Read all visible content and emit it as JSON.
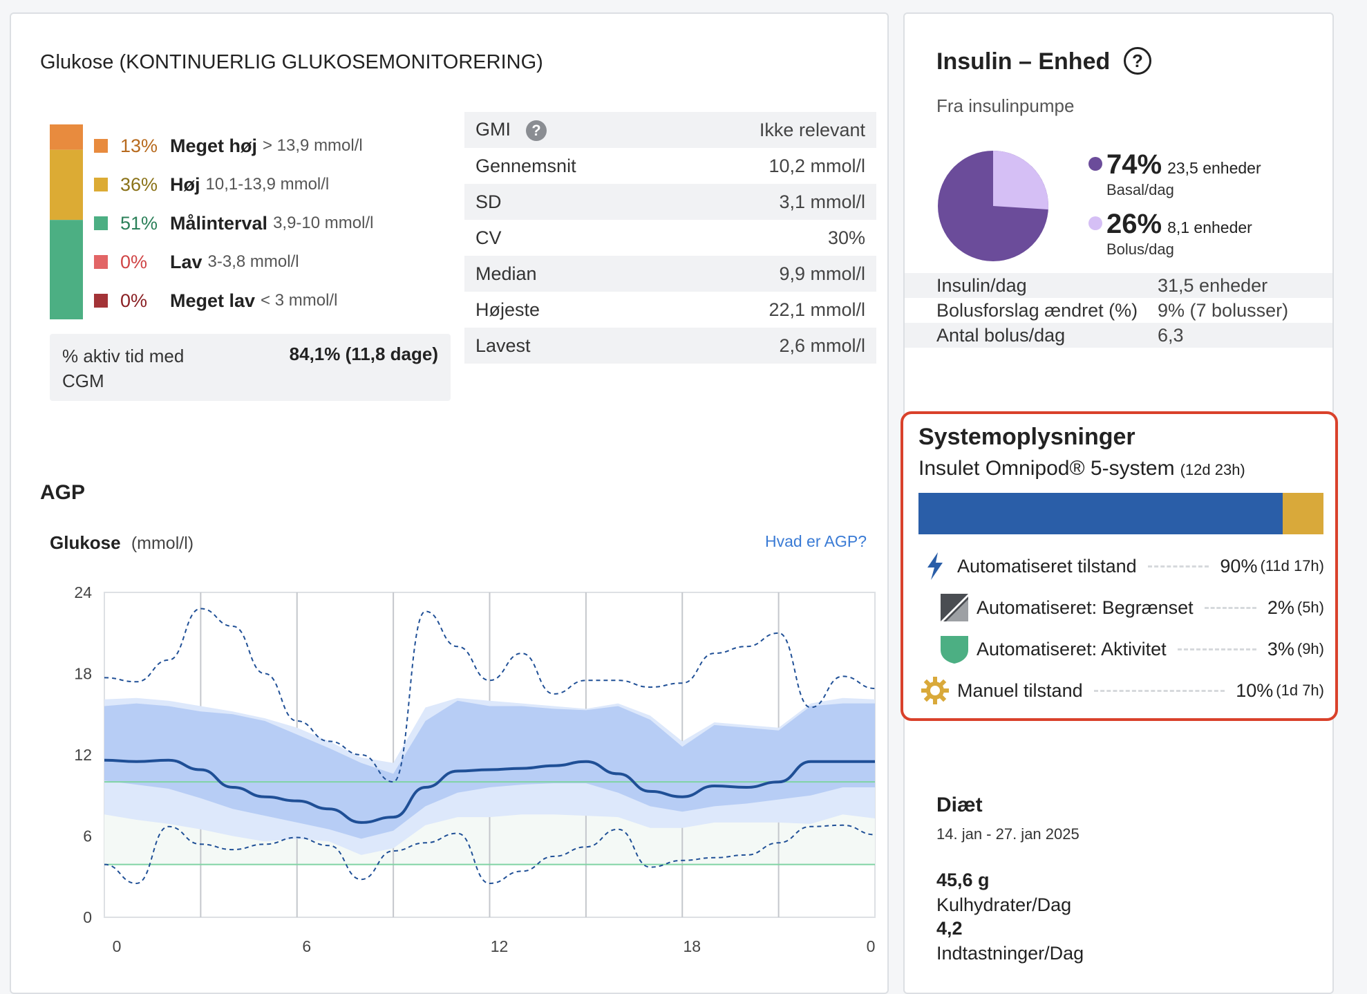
{
  "glucose": {
    "title": "Glukose (KONTINUERLIG GLUKOSEMONITORERING)",
    "tir": [
      {
        "pct": "13%",
        "name": "Meget høj",
        "range": "> 13,9 mmol/l",
        "color": "#e88b3e",
        "text_color": "#b76a1e",
        "value": 13
      },
      {
        "pct": "36%",
        "name": "Høj",
        "range": "10,1-13,9 mmol/l",
        "color": "#dcab34",
        "text_color": "#8a7218",
        "value": 36
      },
      {
        "pct": "51%",
        "name": "Målinterval",
        "range": "3,9-10 mmol/l",
        "color": "#4caf83",
        "text_color": "#2b8059",
        "value": 51
      },
      {
        "pct": "0%",
        "name": "Lav",
        "range": "3-3,8 mmol/l",
        "color": "#e26566",
        "text_color": "#d04546",
        "value": 0
      },
      {
        "pct": "0%",
        "name": "Meget lav",
        "range": "< 3 mmol/l",
        "color": "#a33337",
        "text_color": "#8a2024",
        "value": 0
      }
    ],
    "active_label": "% aktiv tid med CGM",
    "active_value": "84,1% (11,8 dage)",
    "stats": [
      {
        "label": "GMI",
        "value": "Ikke relevant",
        "help": "?"
      },
      {
        "label": "Gennemsnit",
        "value": "10,2 mmol/l"
      },
      {
        "label": "SD",
        "value": "3,1 mmol/l"
      },
      {
        "label": "CV",
        "value": "30%"
      },
      {
        "label": "Median",
        "value": "9,9 mmol/l"
      },
      {
        "label": "Højeste",
        "value": "22,1 mmol/l"
      },
      {
        "label": "Lavest",
        "value": "2,6 mmol/l"
      }
    ]
  },
  "agp": {
    "title": "AGP",
    "subtitle": "Glukose",
    "unit": "(mmol/l)",
    "link": "Hvad er AGP?"
  },
  "chart_data": {
    "type": "line",
    "xlabel": "",
    "ylabel": "Glukose (mmol/l)",
    "xlim": [
      0,
      24
    ],
    "ylim": [
      0,
      24
    ],
    "x_ticks": [
      "0",
      "6",
      "12",
      "18",
      "0"
    ],
    "y_ticks": [
      "24",
      "18",
      "12",
      "6",
      "0"
    ],
    "target_range": [
      3.9,
      10
    ],
    "x": [
      0,
      1,
      2,
      3,
      4,
      5,
      6,
      7,
      8,
      9,
      10,
      11,
      12,
      13,
      14,
      15,
      16,
      17,
      18,
      19,
      20,
      21,
      22,
      23,
      24
    ],
    "series": [
      {
        "name": "p95",
        "values": [
          17.7,
          17.4,
          19,
          22.8,
          21.5,
          18,
          14.5,
          13,
          12,
          10,
          22.6,
          20,
          17.5,
          19.5,
          16.5,
          17.5,
          17.5,
          17,
          17.3,
          19.5,
          20,
          21,
          15.5,
          17.8,
          16.9
        ]
      },
      {
        "name": "p75",
        "values": [
          15.6,
          15.8,
          15.6,
          15.2,
          15,
          14.5,
          13.5,
          12.5,
          11.4,
          10.6,
          14.5,
          16,
          15.6,
          15.6,
          15.4,
          15.3,
          15.6,
          14.6,
          12.6,
          14.2,
          14,
          13.8,
          15.6,
          15.8,
          15.8
        ]
      },
      {
        "name": "p50",
        "values": [
          11.6,
          11.5,
          11.6,
          10.9,
          9.6,
          8.9,
          8.6,
          8,
          7,
          7.4,
          9.6,
          10.8,
          10.9,
          11,
          11.2,
          11.5,
          10.6,
          9.3,
          8.9,
          9.7,
          9.6,
          10,
          11.5,
          11.5,
          11.5
        ]
      },
      {
        "name": "p25",
        "values": [
          10.1,
          9.8,
          9.5,
          8.8,
          8,
          7.5,
          7,
          6.5,
          5.8,
          6.4,
          8.2,
          9.2,
          9.6,
          9.8,
          9.9,
          9.9,
          9.2,
          8.2,
          7.8,
          8.2,
          8.4,
          8.7,
          9,
          9.6,
          9.6
        ]
      },
      {
        "name": "p5",
        "values": [
          3.9,
          2.5,
          6.7,
          5.4,
          5,
          5.4,
          5.9,
          5.3,
          2.8,
          4.9,
          5.5,
          6.2,
          2.5,
          3.4,
          4.5,
          5.2,
          6.5,
          3.7,
          4.2,
          4.4,
          4.6,
          5.5,
          6.7,
          6.8,
          6.1
        ]
      },
      {
        "name": "p10",
        "values": [
          7.6,
          7.2,
          6.9,
          6.5,
          6,
          5.6,
          5.8,
          5.6,
          4.6,
          5.1,
          6.8,
          7.4,
          7.4,
          7.6,
          7.6,
          7.5,
          7.4,
          6.6,
          6.6,
          7,
          7,
          7,
          6.9,
          7.6,
          7.3
        ]
      },
      {
        "name": "p90",
        "values": [
          16.1,
          16.2,
          16,
          15.6,
          15.2,
          14.7,
          14,
          13,
          11.8,
          11.4,
          15.5,
          16.2,
          16,
          15.8,
          15.6,
          15.4,
          15.8,
          14.9,
          13,
          14.4,
          14.2,
          14,
          15.8,
          16.2,
          16.1
        ]
      }
    ]
  },
  "insulin": {
    "title": "Insulin – Enhed",
    "help": "?",
    "source": "Fra insulinpumpe",
    "basal": {
      "pct": "74%",
      "units": "23,5 enheder",
      "label": "Basal/dag",
      "color": "#6b4c9a",
      "value": 74
    },
    "bolus": {
      "pct": "26%",
      "units": "8,1 enheder",
      "label": "Bolus/dag",
      "color": "#d5bff5",
      "value": 26
    },
    "rows": [
      {
        "label": "Insulin/dag",
        "value": "31,5 enheder"
      },
      {
        "label": "Bolusforslag ændret (%)",
        "value": "9% (7 bolusser)"
      },
      {
        "label": "Antal bolus/dag",
        "value": "6,3"
      }
    ]
  },
  "system": {
    "title": "Systemoplysninger",
    "name": "Insulet Omnipod® 5-system",
    "duration": "(12d 23h)",
    "bar": [
      {
        "value": 90,
        "color": "#2a5ea8"
      },
      {
        "value": 10,
        "color": "#d9a93a"
      }
    ],
    "modes": [
      {
        "label": "Automatiseret tilstand",
        "pct": "90%",
        "dur": "(11d 17h)",
        "icon": "lightning-icon"
      },
      {
        "label": "Automatiseret: Begrænset",
        "pct": "2%",
        "dur": "(5h)",
        "icon": "limited-icon"
      },
      {
        "label": "Automatiseret: Aktivitet",
        "pct": "3%",
        "dur": "(9h)",
        "icon": "shield-icon"
      },
      {
        "label": "Manuel tilstand",
        "pct": "10%",
        "dur": "(1d 7h)",
        "icon": "gear-icon"
      }
    ]
  },
  "diet": {
    "title": "Diæt",
    "date": "14. jan - 27. jan 2025",
    "carbs_value": "45,6 g",
    "carbs_label": "Kulhydrater/Dag",
    "entries_value": "4,2",
    "entries_label": "Indtastninger/Dag"
  }
}
